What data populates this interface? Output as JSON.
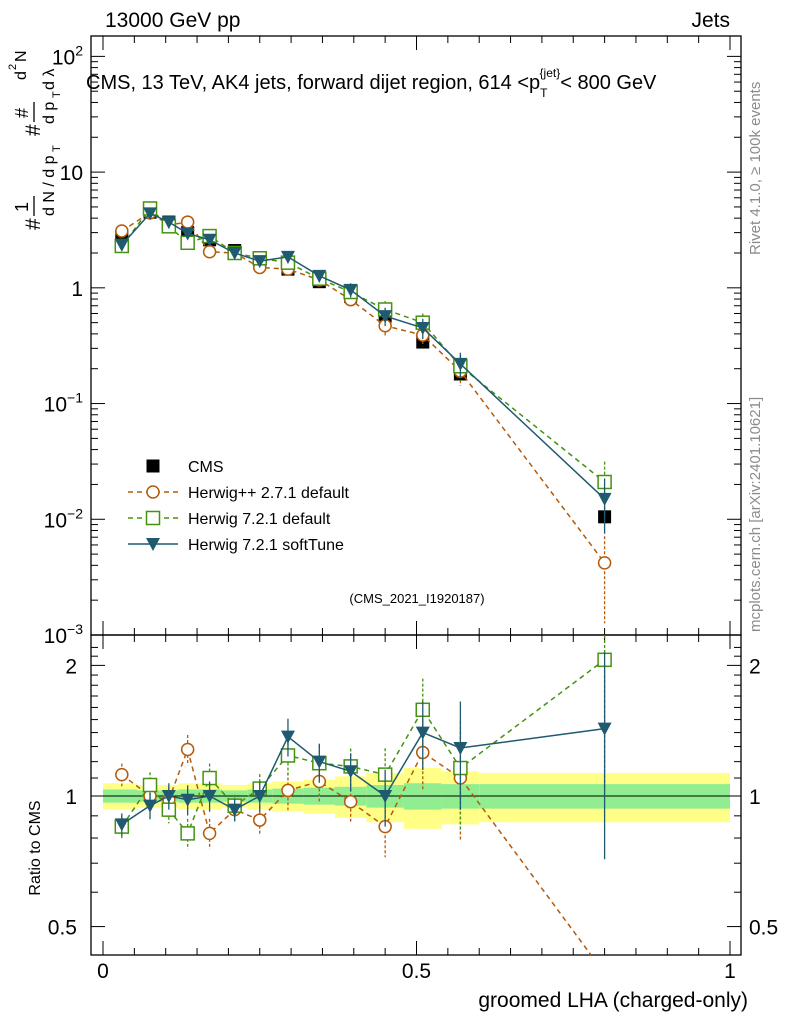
{
  "header": {
    "left": "13000 GeV pp",
    "right": "Jets"
  },
  "side_labels": {
    "rivet": "Rivet 4.1.0, ≥ 100k events",
    "mcplots": "mcplots.cern.ch [arXiv:2401.10621]"
  },
  "watermark": "(CMS_2021_I1920187)",
  "chart_data": [
    {
      "type": "line",
      "panel": "main",
      "title": "CMS, 13 TeV, AK4 jets, forward dijet region, 614 <p_T^{jet}< 800 GeV",
      "ylabel": "1/(dN/dp_T) dN^2/(dp_T dlambda)",
      "yscale": "log",
      "ylim": [
        0.001,
        150
      ],
      "xlim": [
        0,
        1
      ],
      "ytick_labels": [
        "10^{-3}",
        "10^{-2}",
        "10^{-1}",
        "1",
        "10",
        "10^{2}"
      ],
      "x": [
        0.03,
        0.075,
        0.105,
        0.135,
        0.17,
        0.21,
        0.25,
        0.295,
        0.345,
        0.395,
        0.45,
        0.51,
        0.57,
        0.8
      ],
      "series": [
        {
          "name": "CMS",
          "color": "#000000",
          "marker": "filled-square",
          "line": "none",
          "values": [
            2.75,
            4.5,
            3.7,
            3.0,
            2.6,
            2.1,
            1.7,
            1.45,
            1.13,
            0.84,
            0.57,
            0.34,
            0.18,
            0.0105
          ]
        },
        {
          "name": "Herwig++ 2.7.1 default",
          "color": "#b45a0a",
          "marker": "open-circle",
          "line": "dashed",
          "values": [
            3.1,
            4.45,
            3.5,
            3.7,
            2.05,
            2.0,
            1.5,
            1.45,
            1.17,
            0.79,
            0.47,
            0.39,
            0.19,
            0.0042
          ]
        },
        {
          "name": "Herwig 7.2.1 default",
          "color": "#43930f",
          "marker": "open-square",
          "line": "dashed",
          "values": [
            2.3,
            4.85,
            3.4,
            2.45,
            2.8,
            2.0,
            1.8,
            1.65,
            1.2,
            0.92,
            0.65,
            0.5,
            0.21,
            0.021
          ]
        },
        {
          "name": "Herwig 7.2.1 softTune",
          "color": "#1f5a6e",
          "marker": "filled-triangle-down",
          "line": "solid",
          "values": [
            2.35,
            4.4,
            3.7,
            2.95,
            2.6,
            2.0,
            1.7,
            1.85,
            1.27,
            0.96,
            0.57,
            0.45,
            0.22,
            0.015
          ]
        }
      ]
    },
    {
      "type": "line",
      "panel": "ratio",
      "ylabel": "Ratio to CMS",
      "yscale": "log",
      "ylim": [
        0.43,
        2.35
      ],
      "xlim": [
        0,
        1
      ],
      "xlabel": "groomed LHA (charged-only)",
      "xtick_labels": [
        "0",
        "0.5",
        "1"
      ],
      "ytick_labels": [
        "0.5",
        "1",
        "2"
      ],
      "x": [
        0.03,
        0.075,
        0.105,
        0.135,
        0.17,
        0.21,
        0.25,
        0.295,
        0.345,
        0.395,
        0.45,
        0.51,
        0.57,
        0.8
      ],
      "series": [
        {
          "name": "Herwig++ 2.7.1 default",
          "color": "#b45a0a",
          "values": [
            1.12,
            1.0,
            0.98,
            1.28,
            0.82,
            0.93,
            0.88,
            1.03,
            1.08,
            0.97,
            0.85,
            1.26,
            1.1,
            0.39
          ]
        },
        {
          "name": "Herwig 7.2.1 default",
          "color": "#43930f",
          "values": [
            0.85,
            1.06,
            0.93,
            0.82,
            1.1,
            0.95,
            1.04,
            1.24,
            1.19,
            1.17,
            1.12,
            1.58,
            1.16,
            2.06
          ]
        },
        {
          "name": "Herwig 7.2.1 softTune",
          "color": "#1f5a6e",
          "values": [
            0.86,
            0.95,
            1.0,
            0.98,
            1.0,
            0.93,
            1.0,
            1.37,
            1.2,
            1.14,
            1.0,
            1.4,
            1.29,
            1.43
          ]
        }
      ]
    }
  ]
}
